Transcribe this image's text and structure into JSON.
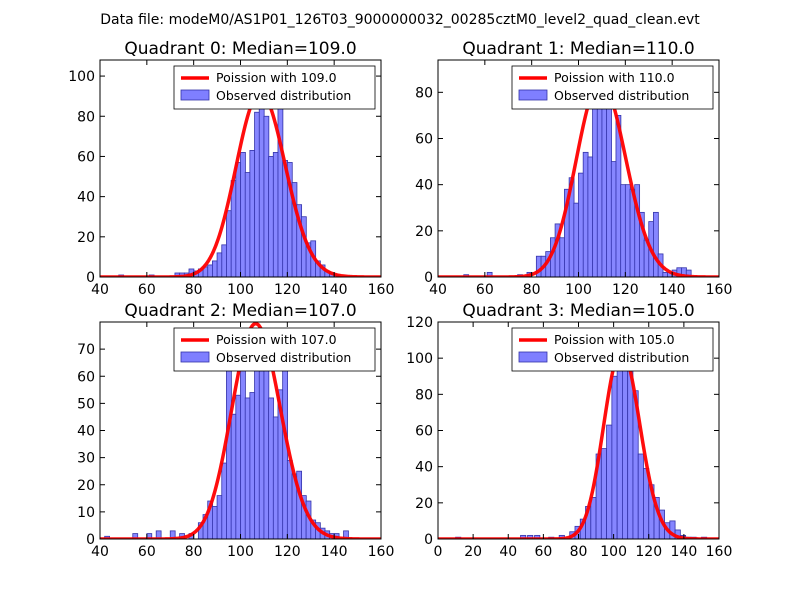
{
  "suptitle": "Data file: modeM0/AS1P01_126T03_9000000032_00285cztM0_level2_quad_clean.evt",
  "colors": {
    "bar_fill": "#7f7fff",
    "bar_edge": "#3333aa",
    "poisson_line": "#ff0000"
  },
  "chart_data": [
    {
      "type": "bar",
      "title": "Quadrant 0: Median=109.0",
      "xlim": [
        40,
        160
      ],
      "ylim": [
        0,
        108
      ],
      "xticks": [
        40,
        60,
        80,
        100,
        120,
        140,
        160
      ],
      "yticks": [
        0,
        20,
        40,
        60,
        80,
        100
      ],
      "median": 109.0,
      "legend": {
        "line_label": "Poission with 109.0",
        "bar_label": "Observed distribution",
        "position": "upper right"
      },
      "bin_width": 2.1,
      "bins": [
        [
          48,
          1
        ],
        [
          61,
          1
        ],
        [
          72,
          2
        ],
        [
          74,
          2
        ],
        [
          76,
          2
        ],
        [
          78,
          4
        ],
        [
          80,
          3
        ],
        [
          82,
          4
        ],
        [
          84,
          5
        ],
        [
          86,
          6
        ],
        [
          88,
          8
        ],
        [
          90,
          12
        ],
        [
          92,
          16
        ],
        [
          94,
          33
        ],
        [
          96,
          48
        ],
        [
          98,
          57
        ],
        [
          100,
          62
        ],
        [
          102,
          52
        ],
        [
          104,
          63
        ],
        [
          106,
          82
        ],
        [
          108,
          98
        ],
        [
          110,
          80
        ],
        [
          112,
          60
        ],
        [
          114,
          62
        ],
        [
          116,
          98
        ],
        [
          118,
          58
        ],
        [
          120,
          57
        ],
        [
          122,
          47
        ],
        [
          124,
          36
        ],
        [
          126,
          30
        ],
        [
          128,
          17
        ],
        [
          130,
          18
        ],
        [
          132,
          8
        ],
        [
          134,
          6
        ],
        [
          136,
          3
        ],
        [
          138,
          2
        ],
        [
          140,
          1
        ]
      ]
    },
    {
      "type": "bar",
      "title": "Quadrant 1: Median=110.0",
      "xlim": [
        40,
        160
      ],
      "ylim": [
        0,
        94
      ],
      "xticks": [
        40,
        60,
        80,
        100,
        120,
        140,
        160
      ],
      "yticks": [
        0,
        20,
        40,
        60,
        80
      ],
      "median": 110.0,
      "legend": {
        "line_label": "Poission with 110.0",
        "bar_label": "Observed distribution",
        "position": "upper right"
      },
      "bin_width": 2.1,
      "bins": [
        [
          51,
          1
        ],
        [
          61,
          2
        ],
        [
          74,
          1
        ],
        [
          78,
          2
        ],
        [
          82,
          9
        ],
        [
          84,
          9
        ],
        [
          86,
          11
        ],
        [
          88,
          17
        ],
        [
          90,
          23
        ],
        [
          92,
          17
        ],
        [
          94,
          38
        ],
        [
          96,
          43
        ],
        [
          98,
          32
        ],
        [
          100,
          45
        ],
        [
          102,
          54
        ],
        [
          104,
          52
        ],
        [
          106,
          76
        ],
        [
          108,
          75
        ],
        [
          110,
          79
        ],
        [
          112,
          75
        ],
        [
          114,
          50
        ],
        [
          116,
          70
        ],
        [
          118,
          40
        ],
        [
          120,
          40
        ],
        [
          122,
          38
        ],
        [
          124,
          40
        ],
        [
          126,
          28
        ],
        [
          128,
          16
        ],
        [
          130,
          24
        ],
        [
          132,
          28
        ],
        [
          134,
          10
        ],
        [
          136,
          2
        ],
        [
          138,
          2
        ],
        [
          140,
          3
        ],
        [
          142,
          4
        ],
        [
          144,
          4
        ],
        [
          146,
          3
        ]
      ]
    },
    {
      "type": "bar",
      "title": "Quadrant 2: Median=107.0",
      "xlim": [
        40,
        160
      ],
      "ylim": [
        0,
        80
      ],
      "xticks": [
        40,
        60,
        80,
        100,
        120,
        140,
        160
      ],
      "yticks": [
        0,
        10,
        20,
        30,
        40,
        50,
        60,
        70
      ],
      "median": 107.0,
      "legend": {
        "line_label": "Poission with 107.0",
        "bar_label": "Observed distribution",
        "position": "upper right"
      },
      "bin_width": 2.1,
      "bins": [
        [
          42,
          1
        ],
        [
          54,
          2
        ],
        [
          60,
          2
        ],
        [
          64,
          3
        ],
        [
          70,
          3
        ],
        [
          74,
          2
        ],
        [
          78,
          2
        ],
        [
          82,
          6
        ],
        [
          84,
          9
        ],
        [
          86,
          14
        ],
        [
          88,
          12
        ],
        [
          90,
          16
        ],
        [
          92,
          28
        ],
        [
          94,
          62
        ],
        [
          96,
          46
        ],
        [
          98,
          53
        ],
        [
          100,
          66
        ],
        [
          102,
          52
        ],
        [
          104,
          54
        ],
        [
          106,
          68
        ],
        [
          108,
          62
        ],
        [
          110,
          63
        ],
        [
          112,
          52
        ],
        [
          114,
          45
        ],
        [
          116,
          55
        ],
        [
          118,
          67
        ],
        [
          120,
          29
        ],
        [
          122,
          24
        ],
        [
          124,
          25
        ],
        [
          126,
          16
        ],
        [
          128,
          14
        ],
        [
          130,
          7
        ],
        [
          132,
          6
        ],
        [
          134,
          4
        ],
        [
          136,
          3
        ],
        [
          138,
          2
        ],
        [
          140,
          2
        ],
        [
          144,
          3
        ]
      ]
    },
    {
      "type": "bar",
      "title": "Quadrant 3: Median=105.0",
      "xlim": [
        0,
        160
      ],
      "ylim": [
        0,
        120
      ],
      "xticks": [
        0,
        20,
        40,
        60,
        80,
        100,
        120,
        140,
        160
      ],
      "yticks": [
        0,
        20,
        40,
        60,
        80,
        100,
        120
      ],
      "median": 105.0,
      "legend": {
        "line_label": "Poission with 105.0",
        "bar_label": "Observed distribution",
        "position": "upper right"
      },
      "bin_width": 3.0,
      "bins": [
        [
          10,
          1
        ],
        [
          47,
          2
        ],
        [
          51,
          2
        ],
        [
          55,
          2
        ],
        [
          63,
          1
        ],
        [
          69,
          2
        ],
        [
          75,
          4
        ],
        [
          78,
          7
        ],
        [
          81,
          11
        ],
        [
          84,
          18
        ],
        [
          87,
          23
        ],
        [
          90,
          47
        ],
        [
          93,
          50
        ],
        [
          96,
          63
        ],
        [
          99,
          90
        ],
        [
          102,
          101
        ],
        [
          105,
          108
        ],
        [
          108,
          97
        ],
        [
          111,
          82
        ],
        [
          114,
          47
        ],
        [
          117,
          39
        ],
        [
          120,
          30
        ],
        [
          123,
          23
        ],
        [
          126,
          16
        ],
        [
          129,
          9
        ],
        [
          132,
          10
        ],
        [
          135,
          5
        ],
        [
          138,
          2
        ],
        [
          141,
          1
        ],
        [
          144,
          1
        ],
        [
          150,
          1
        ]
      ]
    }
  ]
}
